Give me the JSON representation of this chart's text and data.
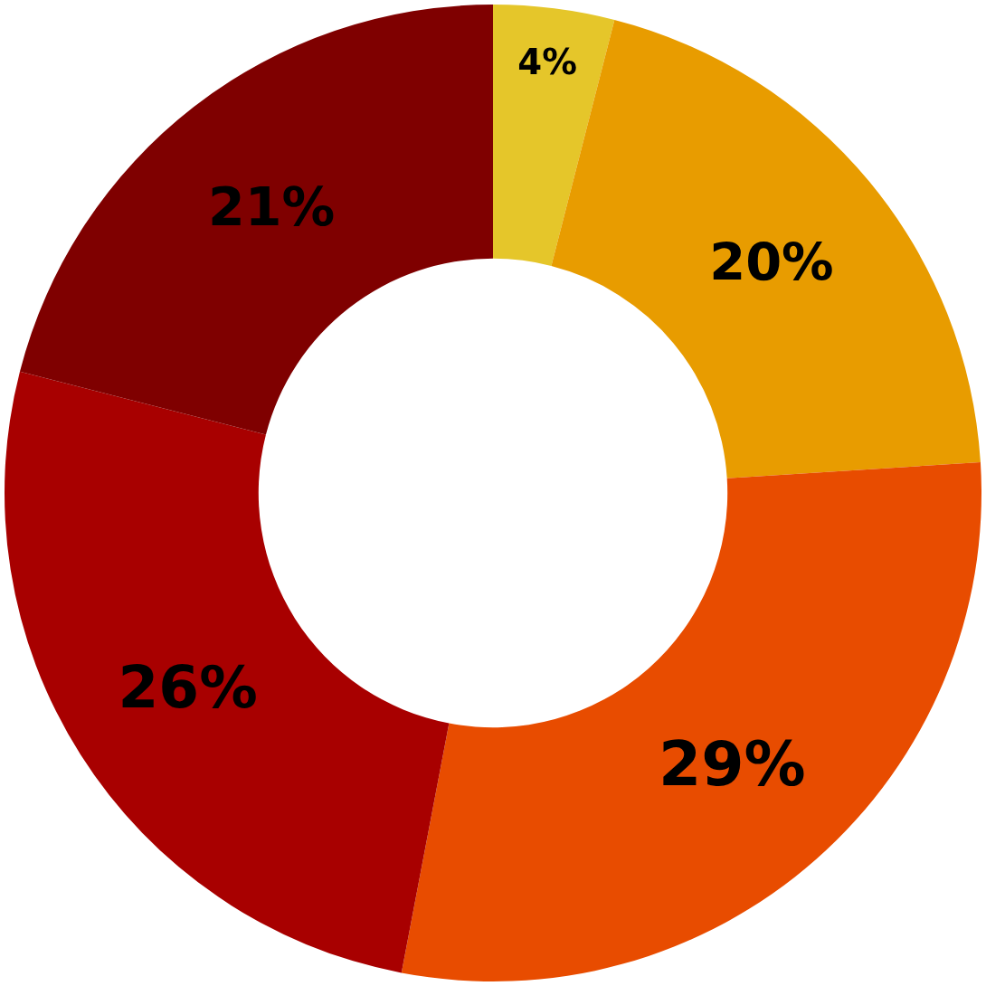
{
  "chart_data": {
    "type": "donut",
    "categories": [
      null,
      null,
      null,
      null,
      null
    ],
    "values": [
      4,
      20,
      29,
      26,
      21
    ],
    "value_labels": [
      "4%",
      "20%",
      "29%",
      "26%",
      "21%"
    ],
    "colors": [
      "#e5c62a",
      "#e89c00",
      "#e84c00",
      "#a80000",
      "#7f0000"
    ],
    "legend": false
  }
}
